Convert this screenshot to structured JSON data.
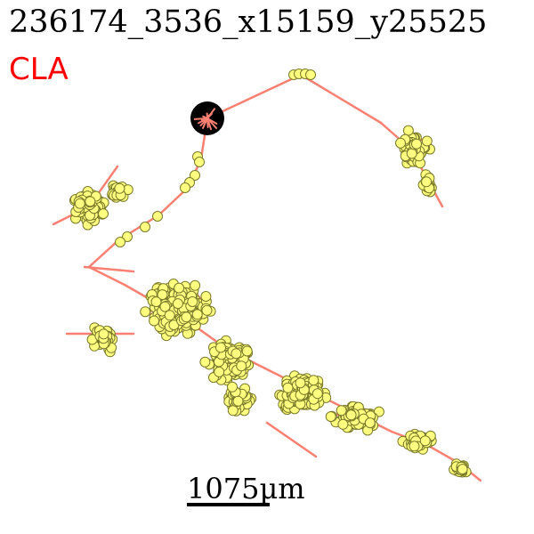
{
  "header": {
    "title": "236174_3536_x15159_y25525",
    "region": "CLA"
  },
  "colors": {
    "region_text": "#ff0000",
    "trace": "#fa8072",
    "node_fill": "#ffff80",
    "node_edge": "#7a7a2a",
    "soma": "#000000",
    "background": "#ffffff"
  },
  "scale": {
    "label": "1075µm"
  }
}
